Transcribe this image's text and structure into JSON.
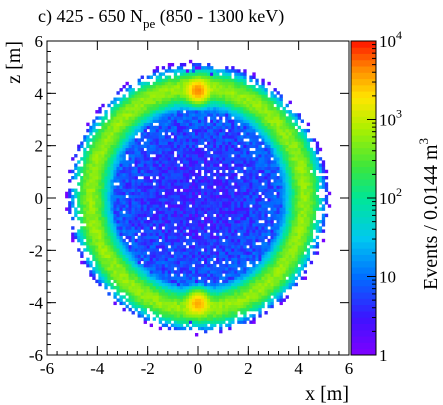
{
  "chart_data": {
    "type": "heatmap",
    "title": {
      "prefix": "c) 425 - 650 N",
      "subscript": "pe",
      "suffix": " (850 - 1300 keV)"
    },
    "xlabel": "x [m]",
    "ylabel": "z [m]",
    "xlim": [
      -6,
      6
    ],
    "ylim": [
      -6,
      6
    ],
    "x_ticks": [
      -6,
      -4,
      -2,
      0,
      2,
      4,
      6
    ],
    "y_ticks": [
      -6,
      -4,
      -2,
      0,
      2,
      4,
      6
    ],
    "x_tick_labels": [
      "-6",
      "-4",
      "-2",
      "0",
      "2",
      "4",
      "6"
    ],
    "y_tick_labels": [
      "-6",
      "-4",
      "-2",
      "0",
      "2",
      "4",
      "6"
    ],
    "colorbar": {
      "label": "Events / 0.0144 m",
      "label_superscript": "3",
      "scale": "log",
      "range": [
        1,
        10000
      ],
      "ticks": [
        {
          "value": 1,
          "base": "1",
          "exp": ""
        },
        {
          "value": 10,
          "base": "10",
          "exp": ""
        },
        {
          "value": 100,
          "base": "10",
          "exp": "2"
        },
        {
          "value": 1000,
          "base": "10",
          "exp": "3"
        },
        {
          "value": 10000,
          "base": "10",
          "exp": "4"
        }
      ]
    },
    "bin_size_m": 0.12,
    "distribution": {
      "shell_radius_x_m": 4.25,
      "shell_radius_z_m": 4.25,
      "shell_peak_events": 600,
      "inner_events": 3,
      "hotspots": [
        {
          "x": 0.0,
          "z": 4.1,
          "events": 4000
        },
        {
          "x": 0.0,
          "z": -4.0,
          "events": 3000
        }
      ]
    },
    "grid": false
  }
}
